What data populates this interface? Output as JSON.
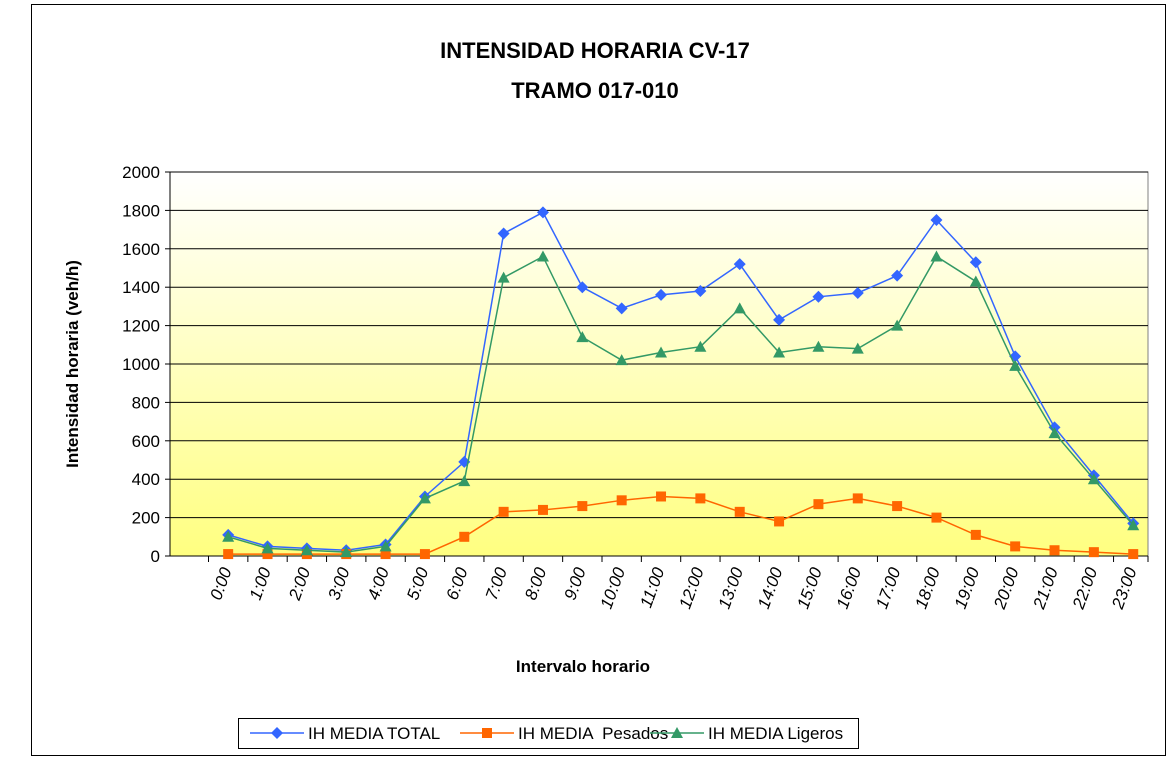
{
  "chart_data": {
    "type": "line",
    "title": "INTENSIDAD HORARIA CV-17",
    "subtitle": "TRAMO 017-010",
    "x_label": "Intervalo horario",
    "y_label": "Intensidad horaria (veh/h)",
    "categories": [
      "0:00",
      "1:00",
      "2:00",
      "3:00",
      "4:00",
      "5:00",
      "6:00",
      "7:00",
      "8:00",
      "9:00",
      "10:00",
      "11:00",
      "12:00",
      "13:00",
      "14:00",
      "15:00",
      "16:00",
      "17:00",
      "18:00",
      "19:00",
      "20:00",
      "21:00",
      "22:00",
      "23:00"
    ],
    "series": [
      {
        "name": "IH MEDIA TOTAL",
        "color": "#3366ff",
        "marker": "diamond",
        "values": [
          110,
          50,
          40,
          30,
          60,
          310,
          490,
          1680,
          1790,
          1400,
          1290,
          1360,
          1380,
          1520,
          1230,
          1350,
          1370,
          1460,
          1750,
          1530,
          1040,
          670,
          420,
          170
        ]
      },
      {
        "name": "IH MEDIA  Pesados",
        "color": "#ff6600",
        "marker": "square",
        "values": [
          10,
          10,
          10,
          10,
          10,
          10,
          100,
          230,
          240,
          260,
          290,
          310,
          300,
          230,
          180,
          270,
          300,
          260,
          200,
          110,
          50,
          30,
          20,
          10
        ]
      },
      {
        "name": "IH MEDIA Ligeros",
        "color": "#339966",
        "marker": "triangle",
        "values": [
          100,
          40,
          30,
          20,
          50,
          300,
          390,
          1450,
          1560,
          1140,
          1020,
          1060,
          1090,
          1290,
          1060,
          1090,
          1080,
          1200,
          1560,
          1430,
          990,
          640,
          400,
          160
        ]
      }
    ],
    "ylim": [
      0,
      2000
    ],
    "yticks": [
      0,
      200,
      400,
      600,
      800,
      1000,
      1200,
      1400,
      1600,
      1800,
      2000
    ],
    "grid": true,
    "legend": "bottom"
  }
}
